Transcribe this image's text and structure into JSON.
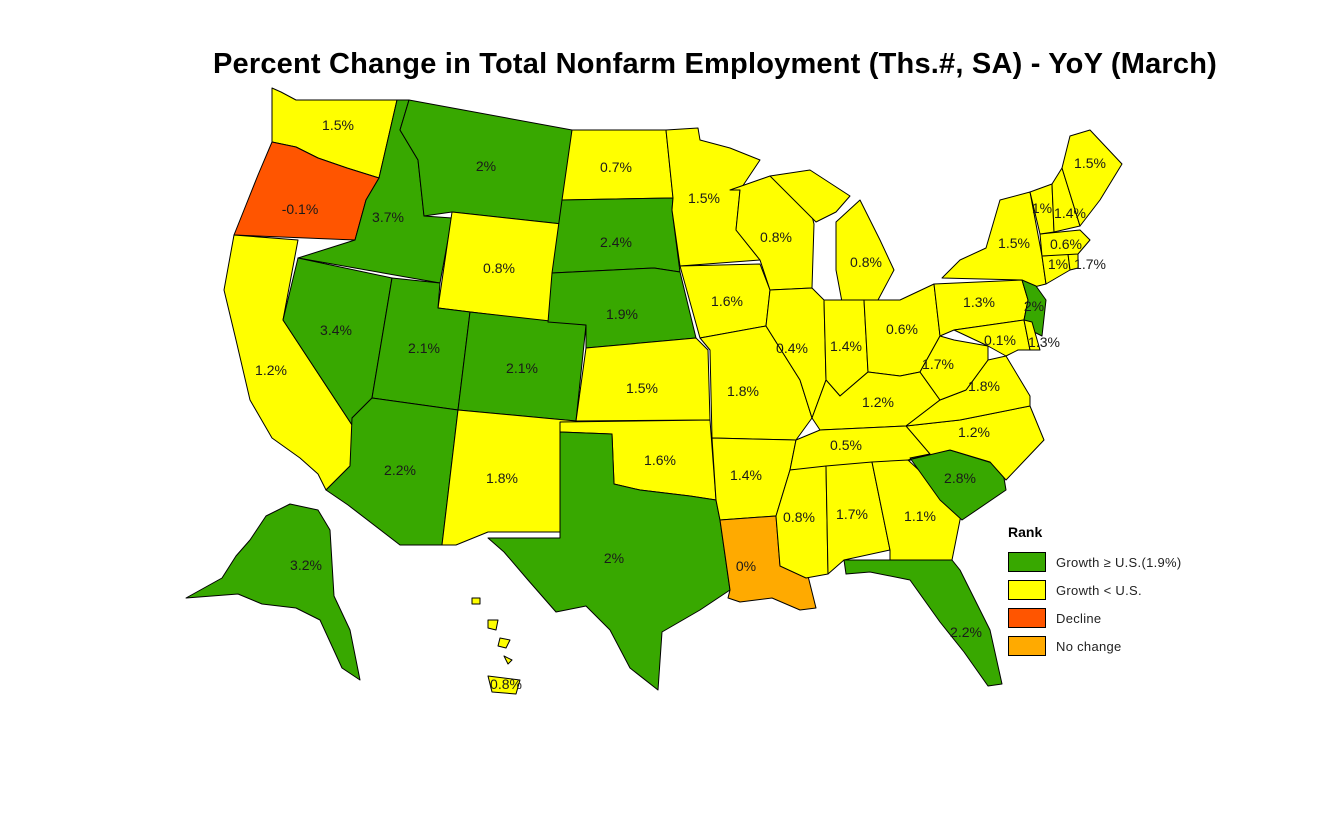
{
  "title": "Percent Change in Total Nonfarm Employment (Ths.#, SA) - YoY (March)",
  "colors": {
    "growth_ge_us": "#38a800",
    "growth_lt_us": "#ffff00",
    "decline": "#ff5500",
    "no_change": "#ffaa00"
  },
  "legend": {
    "title": "Rank",
    "items": [
      {
        "key": "growth_ge_us",
        "label": "Growth ≥ U.S.(1.9%)"
      },
      {
        "key": "growth_lt_us",
        "label": "Growth < U.S."
      },
      {
        "key": "decline",
        "label": "Decline"
      },
      {
        "key": "no_change",
        "label": "No change"
      }
    ]
  },
  "states": [
    {
      "id": "WA",
      "value": "1.5%",
      "cat": "growth_lt_us"
    },
    {
      "id": "OR",
      "value": "-0.1%",
      "cat": "decline"
    },
    {
      "id": "CA",
      "value": "1.2%",
      "cat": "growth_lt_us"
    },
    {
      "id": "ID",
      "value": "3.7%",
      "cat": "growth_ge_us"
    },
    {
      "id": "NV",
      "value": "3.4%",
      "cat": "growth_ge_us"
    },
    {
      "id": "MT",
      "value": "2%",
      "cat": "growth_ge_us"
    },
    {
      "id": "WY",
      "value": "0.8%",
      "cat": "growth_lt_us"
    },
    {
      "id": "UT",
      "value": "2.1%",
      "cat": "growth_ge_us"
    },
    {
      "id": "AZ",
      "value": "2.2%",
      "cat": "growth_ge_us"
    },
    {
      "id": "CO",
      "value": "2.1%",
      "cat": "growth_ge_us"
    },
    {
      "id": "NM",
      "value": "1.8%",
      "cat": "growth_lt_us"
    },
    {
      "id": "ND",
      "value": "0.7%",
      "cat": "growth_lt_us"
    },
    {
      "id": "SD",
      "value": "2.4%",
      "cat": "growth_ge_us"
    },
    {
      "id": "NE",
      "value": "1.9%",
      "cat": "growth_ge_us"
    },
    {
      "id": "KS",
      "value": "1.5%",
      "cat": "growth_lt_us"
    },
    {
      "id": "OK",
      "value": "1.6%",
      "cat": "growth_lt_us"
    },
    {
      "id": "TX",
      "value": "2%",
      "cat": "growth_ge_us"
    },
    {
      "id": "MN",
      "value": "1.5%",
      "cat": "growth_lt_us"
    },
    {
      "id": "IA",
      "value": "1.6%",
      "cat": "growth_lt_us"
    },
    {
      "id": "MO",
      "value": "1.8%",
      "cat": "growth_lt_us"
    },
    {
      "id": "AR",
      "value": "1.4%",
      "cat": "growth_lt_us"
    },
    {
      "id": "LA",
      "value": "0%",
      "cat": "no_change"
    },
    {
      "id": "WI",
      "value": "0.8%",
      "cat": "growth_lt_us"
    },
    {
      "id": "IL",
      "value": "0.4%",
      "cat": "growth_lt_us"
    },
    {
      "id": "MI",
      "value": "0.8%",
      "cat": "growth_lt_us"
    },
    {
      "id": "IN",
      "value": "1.4%",
      "cat": "growth_lt_us"
    },
    {
      "id": "OH",
      "value": "0.6%",
      "cat": "growth_lt_us"
    },
    {
      "id": "KY",
      "value": "1.2%",
      "cat": "growth_lt_us"
    },
    {
      "id": "TN",
      "value": "0.5%",
      "cat": "growth_lt_us"
    },
    {
      "id": "MS",
      "value": "0.8%",
      "cat": "growth_lt_us"
    },
    {
      "id": "AL",
      "value": "1.7%",
      "cat": "growth_lt_us"
    },
    {
      "id": "GA",
      "value": "1.1%",
      "cat": "growth_lt_us"
    },
    {
      "id": "FL",
      "value": "2.2%",
      "cat": "growth_ge_us"
    },
    {
      "id": "SC",
      "value": "2.8%",
      "cat": "growth_ge_us"
    },
    {
      "id": "NC",
      "value": "1.2%",
      "cat": "growth_lt_us"
    },
    {
      "id": "VA",
      "value": "1.8%",
      "cat": "growth_lt_us"
    },
    {
      "id": "WV",
      "value": "1.7%",
      "cat": "growth_lt_us"
    },
    {
      "id": "PA",
      "value": "1.3%",
      "cat": "growth_lt_us"
    },
    {
      "id": "NY",
      "value": "1.5%",
      "cat": "growth_lt_us"
    },
    {
      "id": "NJ",
      "value": "2%",
      "cat": "growth_ge_us"
    },
    {
      "id": "MD",
      "value": "0.1%",
      "cat": "growth_lt_us"
    },
    {
      "id": "DE",
      "value": "1.3%",
      "cat": "growth_lt_us"
    },
    {
      "id": "CT",
      "value": "1%",
      "cat": "growth_lt_us"
    },
    {
      "id": "RI",
      "value": "1.7%",
      "cat": "growth_lt_us"
    },
    {
      "id": "MA",
      "value": "0.6%",
      "cat": "growth_lt_us"
    },
    {
      "id": "VT",
      "value": "1%",
      "cat": "growth_lt_us"
    },
    {
      "id": "NH",
      "value": "1.4%",
      "cat": "growth_lt_us"
    },
    {
      "id": "ME",
      "value": "1.5%",
      "cat": "growth_lt_us"
    },
    {
      "id": "AK",
      "value": "3.2%",
      "cat": "growth_ge_us"
    },
    {
      "id": "HI",
      "value": "0.8%",
      "cat": "growth_lt_us"
    }
  ]
}
